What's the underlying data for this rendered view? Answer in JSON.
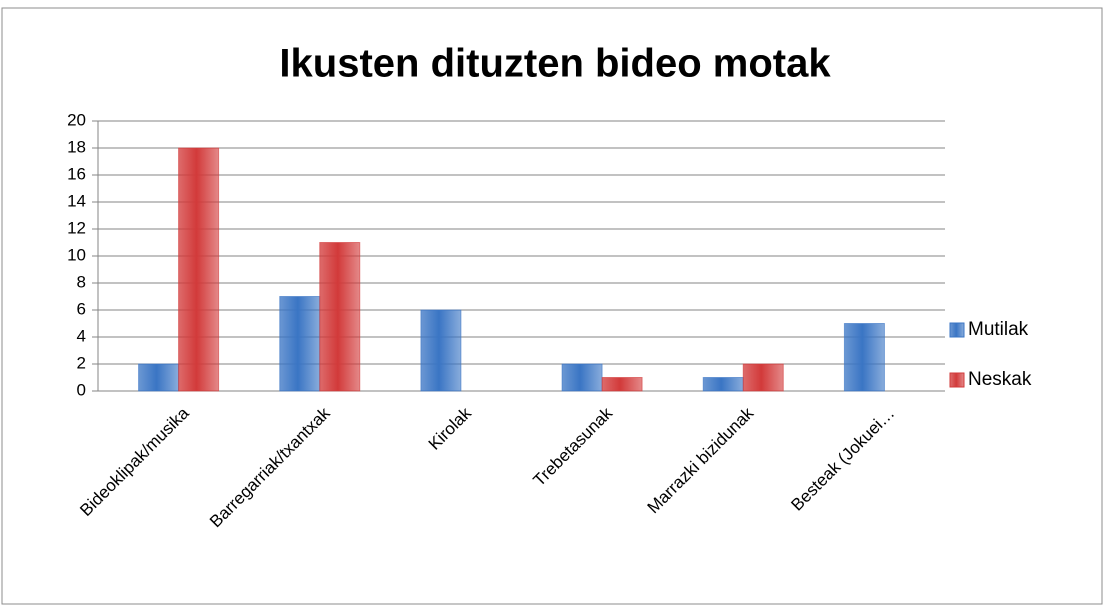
{
  "chart_data": {
    "type": "bar",
    "title": "Ikusten dituzten bideo motak",
    "categories": [
      "Bideoklipak/musika",
      "Barregarriak/txantxak",
      "Kirolak",
      "Trebetasunak",
      "Marrazki bizidunak",
      "Besteak (Jokuei…"
    ],
    "series": [
      {
        "name": "Mutilak",
        "color": "#3a75c4",
        "values": [
          2,
          7,
          6,
          2,
          1,
          5
        ]
      },
      {
        "name": "Neskak",
        "color": "#d23a3a",
        "values": [
          18,
          11,
          0,
          1,
          2,
          0
        ]
      }
    ],
    "ylim": [
      0,
      20
    ],
    "yticks": [
      0,
      2,
      4,
      6,
      8,
      10,
      12,
      14,
      16,
      18,
      20
    ],
    "grid": true,
    "legend": "right"
  }
}
